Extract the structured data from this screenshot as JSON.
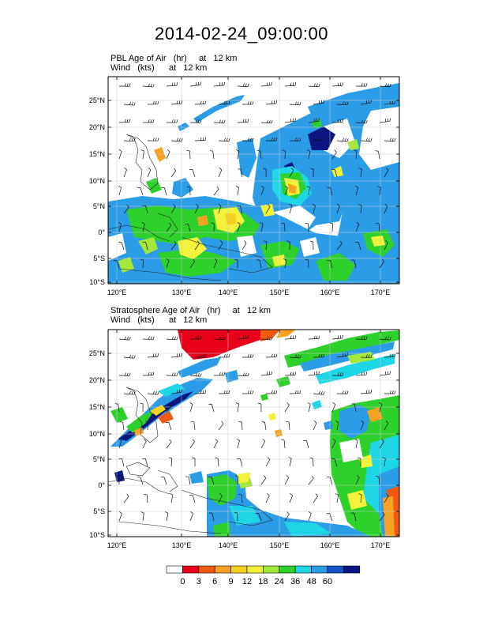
{
  "title": "2014-02-24_09:00:00",
  "panels": [
    {
      "line1": "PBL Age of Air   (hr)     at   12 km",
      "line2": "Wind   (kts)      at   12 km"
    },
    {
      "line1": "Stratosphere Age of Air   (hr)     at   12 km",
      "line2": "Wind   (kts)      at   12 km"
    }
  ],
  "lat_ticks": [
    "25°N",
    "20°N",
    "15°N",
    "10°N",
    "5°N",
    "0°",
    "5°S",
    "10°S"
  ],
  "lon_ticks": [
    "120°E",
    "130°E",
    "140°E",
    "150°E",
    "160°E",
    "170°E"
  ],
  "colorbar": {
    "labels": [
      "0",
      "3",
      "6",
      "9",
      "12",
      "18",
      "24",
      "36",
      "48",
      "60"
    ],
    "colors": [
      "#ffffff",
      "#e8001a",
      "#f25a14",
      "#f7a321",
      "#f5d21f",
      "#f2f23a",
      "#a3e83a",
      "#2ed12c",
      "#1fd6e6",
      "#2b9ce6",
      "#1452c7",
      "#0a1780"
    ]
  },
  "palette": {
    "blue_deep": "#0a1780",
    "blue": "#2b9ce6",
    "cyan": "#1fd6e6",
    "green": "#2ed12c",
    "lime": "#a3e83a",
    "yellow": "#f2f23a",
    "gold": "#f5d21f",
    "orange": "#f7a321",
    "red_orange": "#f25a14",
    "red": "#e8001a"
  }
}
